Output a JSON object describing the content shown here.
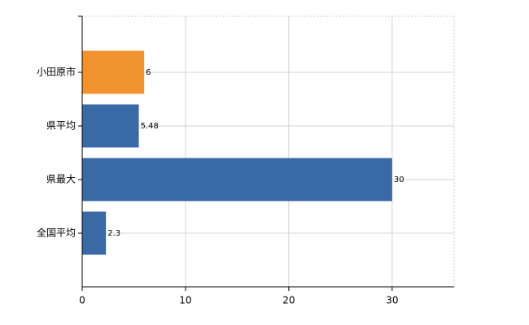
{
  "chart_data": {
    "type": "bar",
    "orientation": "horizontal",
    "categories": [
      "小田原市",
      "県平均",
      "県最大",
      "全国平均"
    ],
    "values": [
      6,
      5.48,
      30,
      2.3
    ],
    "colors": [
      "#f0932f",
      "#3a6aa5",
      "#3a6aa5",
      "#3a6aa5"
    ],
    "xlim": [
      0,
      36
    ],
    "xticks": [
      0,
      10,
      20,
      30
    ],
    "grid": true
  }
}
